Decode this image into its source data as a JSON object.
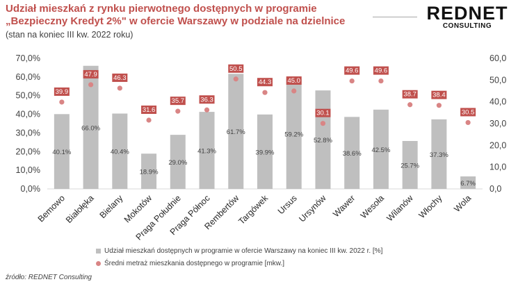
{
  "header": {
    "title_line1": "Udział mieszkań z rynku pierwotnego dostępnych w programie",
    "title_line2": "„Bezpieczny Kredyt 2%\" w ofercie Warszawy w podziale na dzielnice",
    "subtitle": "(stan na koniec III kw. 2022 roku)"
  },
  "logo": {
    "brand": "REDNET",
    "sub": "CONSULTING"
  },
  "source": "źródło: REDNET Consulting",
  "colors": {
    "bar": "#bfbfbf",
    "dot": "#d98585",
    "label_bg": "#c0504d",
    "title": "#c0504d"
  },
  "chart_data": {
    "type": "bar",
    "categories": [
      "Bemowo",
      "Białołęka",
      "Bielany",
      "Mokotów",
      "Praga Południe",
      "Praga Północ",
      "Rembertów",
      "Targówek",
      "Ursus",
      "Ursynów",
      "Wawer",
      "Wesoła",
      "Wilanów",
      "Włochy",
      "Wola"
    ],
    "series": [
      {
        "name": "Udział mieszkań dostępnych w programie w ofercie Warszawy na koniec III kw. 2022 r. [%]",
        "type": "bar",
        "axis": "left",
        "values": [
          40.1,
          66.0,
          40.4,
          18.9,
          29.0,
          41.3,
          61.7,
          39.9,
          59.2,
          52.8,
          38.6,
          42.5,
          25.7,
          37.3,
          6.7
        ],
        "labels": [
          "40.1%",
          "66.0%",
          "40.4%",
          "18.9%",
          "29.0%",
          "41.3%",
          "61.7%",
          "39.9%",
          "59.2%",
          "52.8%",
          "38.6%",
          "42.5%",
          "25.7%",
          "37.3%",
          "6.7%"
        ]
      },
      {
        "name": "Średni metraż mieszkania dostępnego w programie [mkw.]",
        "type": "scatter",
        "axis": "right",
        "values": [
          39.9,
          47.9,
          46.3,
          31.6,
          35.7,
          36.3,
          50.5,
          44.3,
          45.0,
          30.1,
          49.6,
          49.6,
          38.7,
          38.4,
          30.5
        ],
        "labels": [
          "39.9",
          "47.9",
          "46.3",
          "31.6",
          "35.7",
          "36.3",
          "50.5",
          "44.3",
          "45.0",
          "30.1",
          "49.6",
          "49.6",
          "38.7",
          "38.4",
          "30.5"
        ]
      }
    ],
    "y_left": {
      "min": 0,
      "max": 70,
      "step": 10,
      "tick_labels": [
        "0,0%",
        "10,0%",
        "20,0%",
        "30,0%",
        "40,0%",
        "50,0%",
        "60,0%",
        "70,0%"
      ]
    },
    "y_right": {
      "min": 0,
      "max": 60,
      "step": 10,
      "tick_labels": [
        "0,0",
        "10,0",
        "20,0",
        "30,0",
        "40,0",
        "50,0",
        "60,0"
      ]
    },
    "legend_position": "bottom",
    "grid": false
  }
}
